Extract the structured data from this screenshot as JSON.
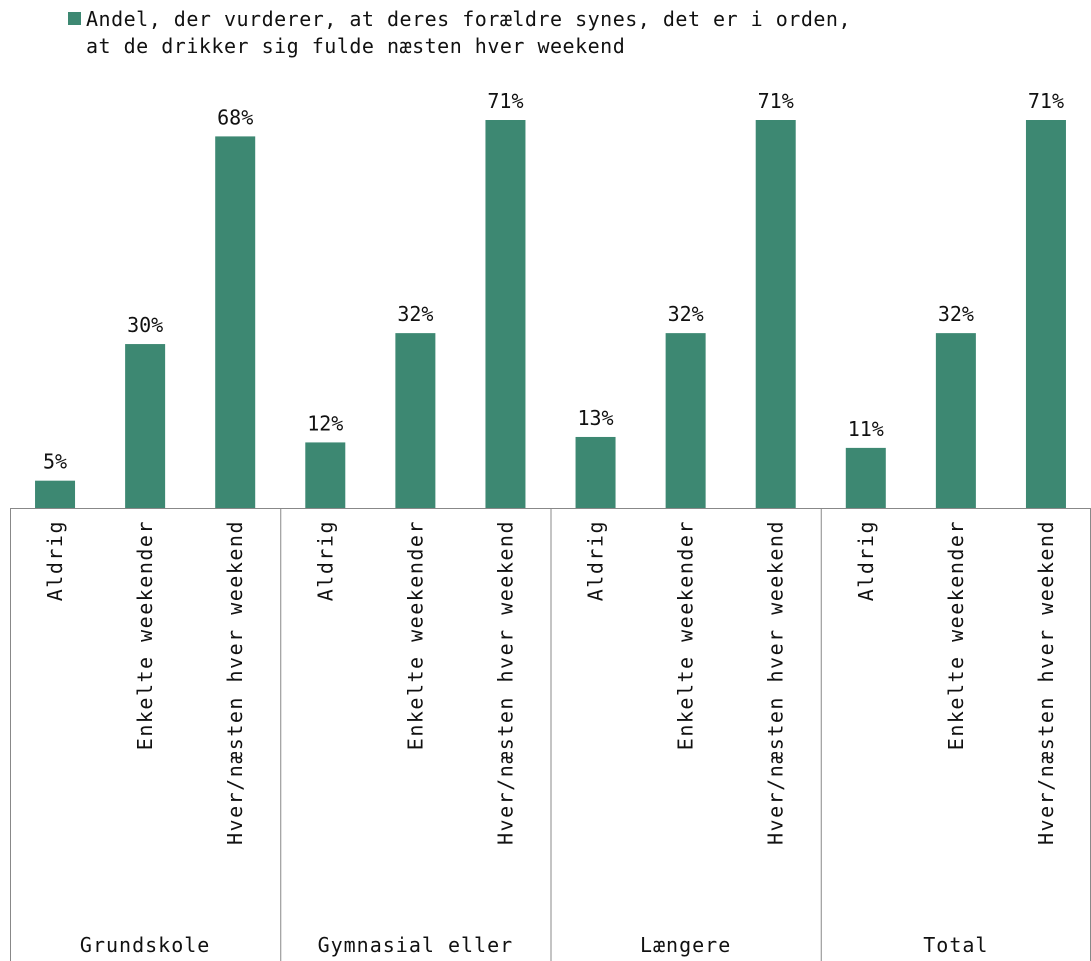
{
  "chart_data": {
    "type": "bar",
    "legend_position": "top-left",
    "grid": false,
    "ylim": [
      0,
      75
    ],
    "groups": [
      {
        "label": "Grundskole",
        "categories": [
          "Aldrig",
          "Enkelte weekender",
          "Hver/næsten hver weekend"
        ],
        "values": [
          5,
          30,
          68
        ]
      },
      {
        "label": "Gymnasial eller",
        "categories": [
          "Aldrig",
          "Enkelte weekender",
          "Hver/næsten hver weekend"
        ],
        "values": [
          12,
          32,
          71
        ]
      },
      {
        "label": "Længere",
        "categories": [
          "Aldrig",
          "Enkelte weekender",
          "Hver/næsten hver weekend"
        ],
        "values": [
          13,
          32,
          71
        ]
      },
      {
        "label": "Total",
        "categories": [
          "Aldrig",
          "Enkelte weekender",
          "Hver/næsten hver weekend"
        ],
        "values": [
          11,
          32,
          71
        ]
      }
    ],
    "series": [
      {
        "name": "Andel, der vurderer, at deres forældre synes, det er i orden, at de drikker sig fulde næsten hver weekend",
        "color": "#3d8872"
      }
    ],
    "value_suffix": "%"
  }
}
